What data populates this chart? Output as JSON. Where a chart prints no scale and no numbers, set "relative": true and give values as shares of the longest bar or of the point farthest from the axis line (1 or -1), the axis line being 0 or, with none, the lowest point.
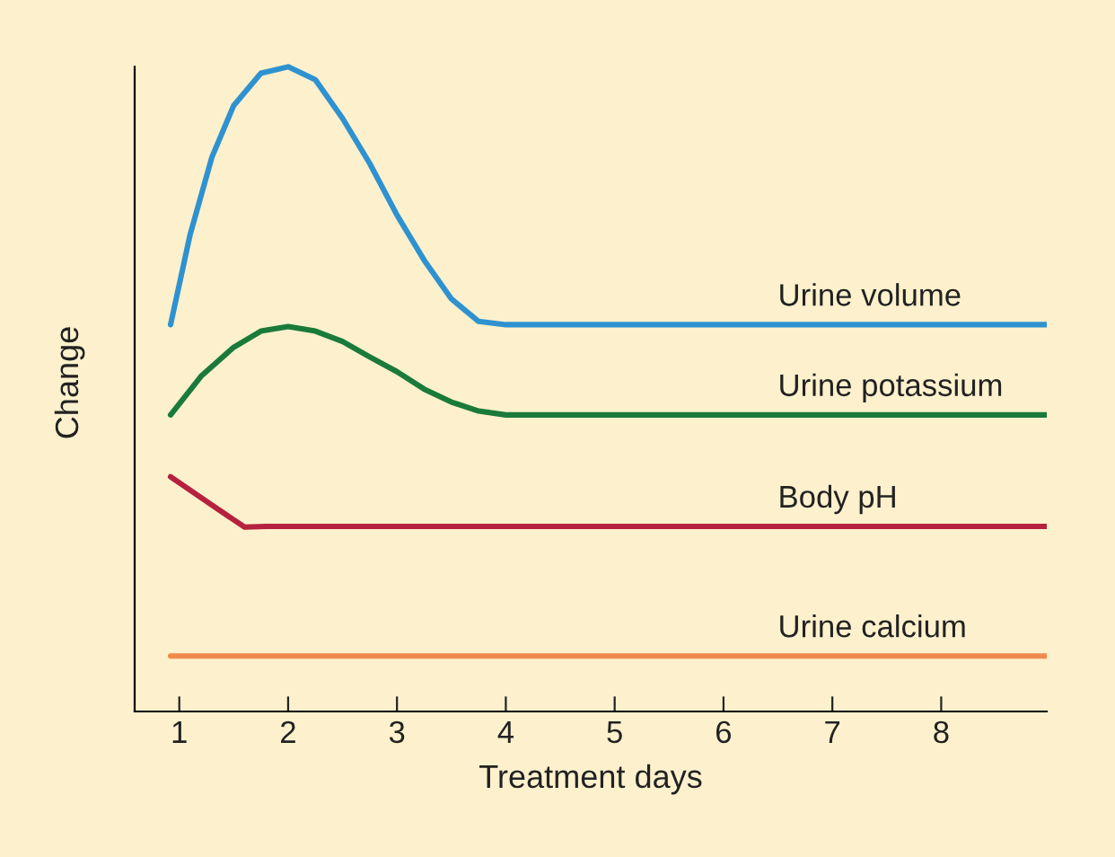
{
  "chart_data": {
    "type": "line",
    "xlabel": "Treatment days",
    "ylabel": "Change",
    "relative": true,
    "xlim": [
      0.59,
      8.97
    ],
    "xticks": [
      1,
      2,
      3,
      4,
      5,
      6,
      7,
      8
    ],
    "legend": false,
    "grid": false,
    "marker": "none",
    "line_style": "solid",
    "series": [
      {
        "name": "Urine volume",
        "color": "#2f92d0",
        "x": [
          0.92,
          1.1,
          1.3,
          1.5,
          1.75,
          2.0,
          2.25,
          2.5,
          2.75,
          3.0,
          3.25,
          3.5,
          3.75,
          4.0,
          5,
          6,
          7,
          8,
          8.97
        ],
        "values": [
          0.6,
          0.74,
          0.86,
          0.94,
          0.99,
          1.0,
          0.98,
          0.92,
          0.85,
          0.77,
          0.7,
          0.64,
          0.605,
          0.6,
          0.6,
          0.6,
          0.6,
          0.6,
          0.6
        ]
      },
      {
        "name": "Urine potassium",
        "color": "#1a7a3a",
        "x": [
          0.92,
          1.2,
          1.5,
          1.75,
          2.0,
          2.25,
          2.5,
          2.75,
          3.0,
          3.25,
          3.5,
          3.75,
          4.0,
          5,
          6,
          7,
          8,
          8.97
        ],
        "values": [
          0.46,
          0.52,
          0.565,
          0.59,
          0.597,
          0.59,
          0.574,
          0.55,
          0.527,
          0.5,
          0.48,
          0.466,
          0.46,
          0.46,
          0.46,
          0.46,
          0.46,
          0.46
        ]
      },
      {
        "name": "Body pH",
        "color": "#b5213e",
        "x": [
          0.92,
          1.3,
          1.6,
          1.8,
          3,
          4,
          5,
          6,
          7,
          8,
          8.97
        ],
        "values": [
          0.364,
          0.32,
          0.286,
          0.287,
          0.287,
          0.287,
          0.287,
          0.287,
          0.287,
          0.287,
          0.287
        ]
      },
      {
        "name": "Urine calcium",
        "color": "#f08a4b",
        "x": [
          0.92,
          8.97
        ],
        "values": [
          0.086,
          0.086
        ]
      }
    ]
  }
}
